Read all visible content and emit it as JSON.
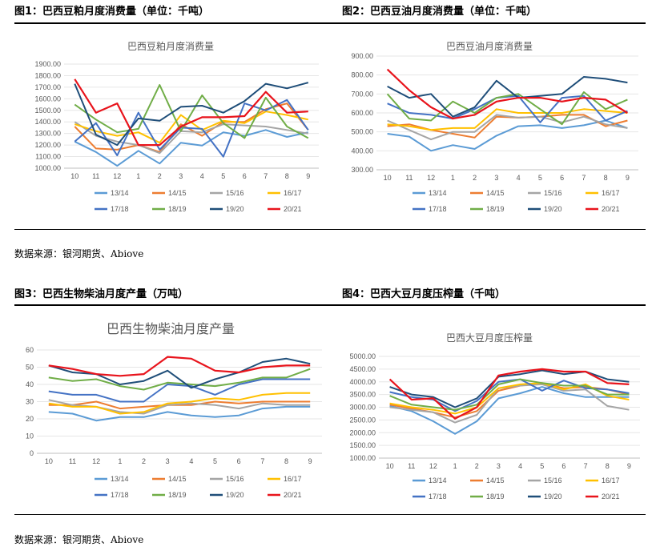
{
  "figures": {
    "fig1_title": "图1：巴西豆粕月度消费量（单位：千吨）",
    "fig2_title": "图2：巴西豆油月度消费量（单位：千吨）",
    "fig3_title": "图3：巴西生物柴油月度产量（万吨）",
    "fig4_title": "图4：巴西大豆月度压榨量（千吨）"
  },
  "sources": {
    "top": "数据来源：银河期货、Abiove",
    "bottom": "数据来源：银河期货、Abiove"
  },
  "colors": {
    "13/14": "#5b9bd5",
    "14/15": "#ed7d31",
    "15/16": "#a5a5a5",
    "16/17": "#ffc000",
    "17/18": "#4472c4",
    "18/19": "#70ad47",
    "19/20": "#264478",
    "20/21": "#9e480e"
  },
  "chart_data": [
    {
      "id": "meal",
      "type": "line",
      "title": "巴西豆粕月度消费量",
      "categories": [
        "10",
        "11",
        "12",
        "1",
        "2",
        "3",
        "4",
        "5",
        "6",
        "7",
        "8",
        "9"
      ],
      "ylim": [
        1000,
        1900
      ],
      "yticks": [
        "1000.00",
        "1100.00",
        "1200.00",
        "1300.00",
        "1400.00",
        "1500.00",
        "1600.00",
        "1700.00",
        "1800.00",
        "1900.00"
      ],
      "legend_rows": [
        [
          "13/14",
          "14/15",
          "15/16",
          "16/17"
        ],
        [
          "17/18",
          "18/19",
          "19/20",
          "20/21"
        ]
      ],
      "series": [
        {
          "name": "13/14",
          "values": [
            1230,
            1140,
            1020,
            1150,
            1040,
            1220,
            1195,
            1310,
            1280,
            1330,
            1270,
            1310
          ]
        },
        {
          "name": "14/15",
          "values": [
            1360,
            1170,
            1160,
            1200,
            1140,
            1380,
            1280,
            1400,
            1400,
            1510,
            1560,
            1330
          ]
        },
        {
          "name": "15/16",
          "values": [
            1400,
            1280,
            1230,
            1200,
            1130,
            1320,
            1310,
            1380,
            1370,
            1360,
            1330,
            1300
          ]
        },
        {
          "name": "16/17",
          "values": [
            1380,
            1320,
            1280,
            1310,
            1220,
            1460,
            1330,
            1410,
            1390,
            1490,
            1460,
            1420
          ]
        },
        {
          "name": "17/18",
          "values": [
            1230,
            1390,
            1110,
            1480,
            1160,
            1350,
            1340,
            1100,
            1560,
            1500,
            1590,
            1330
          ]
        },
        {
          "name": "18/19",
          "values": [
            1550,
            1420,
            1310,
            1340,
            1720,
            1320,
            1630,
            1390,
            1260,
            1610,
            1360,
            1260
          ]
        },
        {
          "name": "19/20",
          "values": [
            1730,
            1290,
            1200,
            1430,
            1410,
            1530,
            1540,
            1480,
            1580,
            1730,
            1690,
            1740
          ]
        },
        {
          "name": "20/21",
          "values": [
            1770,
            1480,
            1560,
            1200,
            1200,
            1360,
            1440,
            1440,
            1450,
            1660,
            1480,
            1490
          ]
        }
      ]
    },
    {
      "id": "oil",
      "type": "line",
      "title": "巴西豆油月度消费量",
      "categories": [
        "10",
        "11",
        "12",
        "1",
        "2",
        "3",
        "4",
        "5",
        "6",
        "7",
        "8",
        "9"
      ],
      "ylim": [
        300,
        900
      ],
      "yticks": [
        "300.00",
        "400.00",
        "500.00",
        "600.00",
        "700.00",
        "800.00",
        "900.00"
      ],
      "legend_rows": [
        [
          "13/14",
          "14/15",
          "15/16",
          "16/17"
        ],
        [
          "17/18",
          "18/19",
          "19/20",
          "20/21"
        ]
      ],
      "series": [
        {
          "name": "13/14",
          "values": [
            490,
            475,
            400,
            430,
            410,
            480,
            530,
            535,
            520,
            535,
            560,
            520
          ]
        },
        {
          "name": "14/15",
          "values": [
            530,
            540,
            510,
            490,
            470,
            580,
            575,
            580,
            590,
            590,
            530,
            560
          ]
        },
        {
          "name": "15/16",
          "values": [
            560,
            510,
            460,
            500,
            500,
            590,
            575,
            580,
            550,
            580,
            540,
            520
          ]
        },
        {
          "name": "16/17",
          "values": [
            540,
            530,
            510,
            520,
            520,
            620,
            600,
            600,
            600,
            620,
            610,
            600
          ]
        },
        {
          "name": "17/18",
          "values": [
            650,
            600,
            590,
            570,
            620,
            680,
            690,
            550,
            680,
            690,
            560,
            610
          ]
        },
        {
          "name": "18/19",
          "values": [
            700,
            570,
            560,
            660,
            600,
            680,
            700,
            620,
            540,
            710,
            620,
            670
          ]
        },
        {
          "name": "19/20",
          "values": [
            740,
            680,
            700,
            580,
            630,
            770,
            680,
            690,
            700,
            790,
            780,
            760
          ]
        },
        {
          "name": "20/21",
          "values": [
            830,
            720,
            630,
            570,
            590,
            660,
            680,
            680,
            660,
            680,
            670,
            600
          ]
        }
      ]
    },
    {
      "id": "biodiesel",
      "type": "line",
      "title": "巴西生物柴油月度产量",
      "categories": [
        "10",
        "11",
        "12",
        "1",
        "2",
        "3",
        "4",
        "5",
        "6",
        "7",
        "8",
        "9"
      ],
      "ylim": [
        0,
        60
      ],
      "yticks": [
        "0",
        "10",
        "20",
        "30",
        "40",
        "50",
        "60"
      ],
      "legend_rows": [
        [
          "13/14",
          "14/15",
          "15/16",
          "16/17"
        ],
        [
          "17/18",
          "18/19",
          "19/20",
          "20/21"
        ]
      ],
      "series": [
        {
          "name": "13/14",
          "values": [
            24,
            23,
            19,
            21,
            21,
            24,
            22,
            21,
            22,
            26,
            27,
            27
          ]
        },
        {
          "name": "14/15",
          "values": [
            28,
            28,
            30,
            26,
            27,
            28,
            28,
            30,
            29,
            30,
            30,
            30
          ]
        },
        {
          "name": "15/16",
          "values": [
            31,
            28,
            27,
            24,
            23,
            28,
            29,
            28,
            26,
            29,
            28,
            28
          ]
        },
        {
          "name": "16/17",
          "values": [
            29,
            27,
            27,
            23,
            24,
            29,
            30,
            32,
            31,
            34,
            35,
            35
          ]
        },
        {
          "name": "17/18",
          "values": [
            36,
            34,
            34,
            30,
            30,
            40,
            39,
            34,
            40,
            43,
            43,
            43
          ]
        },
        {
          "name": "18/19",
          "values": [
            44,
            42,
            43,
            39,
            37,
            41,
            40,
            39,
            41,
            44,
            44,
            49
          ]
        },
        {
          "name": "19/20",
          "values": [
            51,
            47,
            46,
            40,
            42,
            48,
            38,
            43,
            47,
            53,
            55,
            52
          ]
        },
        {
          "name": "20/21",
          "values": [
            51,
            49,
            46,
            45,
            46,
            56,
            55,
            48,
            47,
            50,
            51,
            51
          ]
        }
      ]
    },
    {
      "id": "crush",
      "type": "line",
      "title": "巴西大豆月度压榨量",
      "categories": [
        "10",
        "11",
        "12",
        "1",
        "2",
        "3",
        "4",
        "5",
        "6",
        "7",
        "8",
        "9"
      ],
      "ylim": [
        1000,
        5000
      ],
      "yticks": [
        "1000.00",
        "1500.00",
        "2000.00",
        "2500.00",
        "3000.00",
        "3500.00",
        "4000.00",
        "4500.00",
        "5000.00"
      ],
      "legend_rows": [
        [
          "13/14",
          "14/15",
          "15/16",
          "16/17"
        ],
        [
          "17/18",
          "18/19",
          "19/20",
          "20/21"
        ]
      ],
      "series": [
        {
          "name": "13/14",
          "values": [
            3050,
            2850,
            2450,
            1950,
            2450,
            3350,
            3550,
            3800,
            3550,
            3400,
            3400,
            3400
          ]
        },
        {
          "name": "14/15",
          "values": [
            3100,
            2950,
            2800,
            2600,
            2850,
            3650,
            3850,
            3950,
            3750,
            3800,
            3700,
            3500
          ]
        },
        {
          "name": "15/16",
          "values": [
            3000,
            2900,
            2800,
            2400,
            2700,
            3750,
            3850,
            3900,
            3650,
            3700,
            3050,
            2900
          ]
        },
        {
          "name": "16/17",
          "values": [
            3150,
            3000,
            2900,
            2750,
            3000,
            3750,
            3900,
            3950,
            3700,
            3900,
            3450,
            3300
          ]
        },
        {
          "name": "17/18",
          "values": [
            3600,
            3400,
            3300,
            2850,
            3250,
            4000,
            4100,
            3650,
            4050,
            3750,
            3700,
            3550
          ]
        },
        {
          "name": "18/19",
          "values": [
            3450,
            3100,
            3000,
            2900,
            3100,
            3900,
            4100,
            3950,
            3850,
            3850,
            3500,
            3500
          ]
        },
        {
          "name": "19/20",
          "values": [
            3800,
            3500,
            3400,
            3000,
            3350,
            4200,
            4300,
            4450,
            4300,
            4400,
            4100,
            4000
          ]
        },
        {
          "name": "20/21",
          "values": [
            4100,
            3300,
            3350,
            2550,
            3000,
            4250,
            4400,
            4500,
            4400,
            4400,
            3950,
            3900
          ]
        }
      ]
    }
  ]
}
